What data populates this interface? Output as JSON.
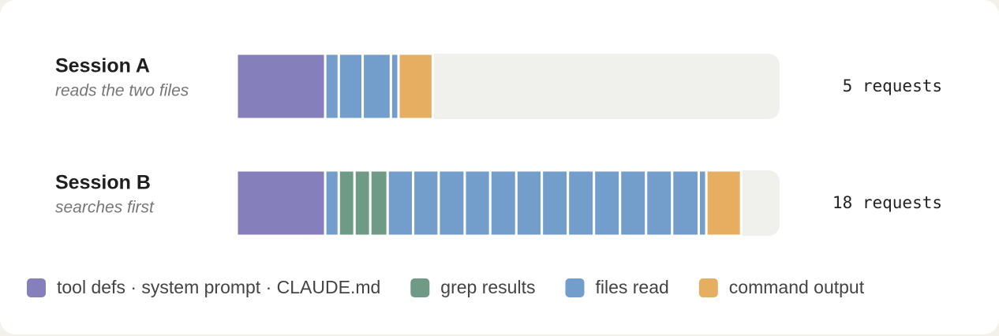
{
  "chart_data": {
    "type": "stacked-bar",
    "xlim": [
      0,
      100
    ],
    "series": [
      {
        "name": "tool defs · system prompt · CLAUDE.md",
        "color": "#8580bb"
      },
      {
        "name": "grep results",
        "color": "#6f9b86"
      },
      {
        "name": "files read",
        "color": "#739dca"
      },
      {
        "name": "command output",
        "color": "#e6ae60"
      }
    ],
    "rows": [
      {
        "name": "Session A",
        "subtitle": "reads the two files",
        "note": "5 requests",
        "segments": [
          {
            "series": 0,
            "value": 16.3
          },
          {
            "series": 2,
            "value": 2.5
          },
          {
            "series": 2,
            "value": 4.4
          },
          {
            "series": 2,
            "value": 5.2
          },
          {
            "series": 2,
            "value": 1.4
          },
          {
            "series": 3,
            "value": 6.3
          }
        ]
      },
      {
        "name": "Session B",
        "subtitle": "searches first",
        "note": "18 requests",
        "segments": [
          {
            "series": 0,
            "value": 16.3
          },
          {
            "series": 2,
            "value": 2.5
          },
          {
            "series": 1,
            "value": 2.9
          },
          {
            "series": 1,
            "value": 2.9
          },
          {
            "series": 1,
            "value": 3.2
          },
          {
            "series": 2,
            "value": 4.7
          },
          {
            "series": 2,
            "value": 4.7
          },
          {
            "series": 2,
            "value": 4.8
          },
          {
            "series": 2,
            "value": 4.7
          },
          {
            "series": 2,
            "value": 4.8
          },
          {
            "series": 2,
            "value": 4.7
          },
          {
            "series": 2,
            "value": 4.8
          },
          {
            "series": 2,
            "value": 4.8
          },
          {
            "series": 2,
            "value": 4.8
          },
          {
            "series": 2,
            "value": 4.8
          },
          {
            "series": 2,
            "value": 4.8
          },
          {
            "series": 2,
            "value": 4.9
          },
          {
            "series": 2,
            "value": 1.4
          },
          {
            "series": 3,
            "value": 6.4
          }
        ]
      }
    ]
  }
}
